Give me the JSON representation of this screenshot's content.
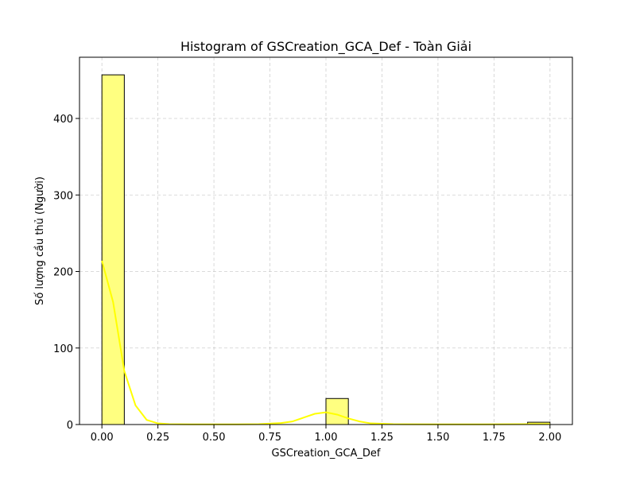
{
  "chart_data": {
    "type": "bar",
    "title": "Histogram of GSCreation_GCA_Def - Toàn Giải",
    "xlabel": "GSCreation_GCA_Def",
    "ylabel": "Số lượng cầu thủ (Người)",
    "xlim": [
      -0.1,
      2.1
    ],
    "ylim": [
      0,
      480
    ],
    "xticks": [
      "0.00",
      "0.25",
      "0.50",
      "0.75",
      "1.00",
      "1.25",
      "1.50",
      "1.75",
      "2.00"
    ],
    "xtick_values": [
      0,
      0.25,
      0.5,
      0.75,
      1.0,
      1.25,
      1.5,
      1.75,
      2.0
    ],
    "yticks": [
      "0",
      "100",
      "200",
      "300",
      "400"
    ],
    "ytick_values": [
      0,
      100,
      200,
      300,
      400
    ],
    "bins": [
      {
        "x0": 0.0,
        "x1": 0.1,
        "count": 457
      },
      {
        "x0": 1.0,
        "x1": 1.1,
        "count": 34
      },
      {
        "x0": 1.9,
        "x1": 2.0,
        "count": 3
      }
    ],
    "kde": {
      "x": [
        0.0,
        0.05,
        0.1,
        0.15,
        0.2,
        0.25,
        0.3,
        0.4,
        0.5,
        0.6,
        0.7,
        0.8,
        0.85,
        0.9,
        0.95,
        1.0,
        1.05,
        1.1,
        1.15,
        1.2,
        1.3,
        1.5,
        1.7,
        1.9,
        2.0
      ],
      "y": [
        214,
        160,
        70,
        25,
        6,
        1.5,
        0.5,
        0.2,
        0.2,
        0.3,
        0.5,
        2,
        4,
        9,
        14,
        16,
        13,
        8,
        4,
        1.5,
        0.5,
        0.3,
        0.3,
        0.5,
        0.5
      ]
    },
    "grid": true,
    "bar_color": "#ffff80",
    "line_color": "#ffff00"
  }
}
